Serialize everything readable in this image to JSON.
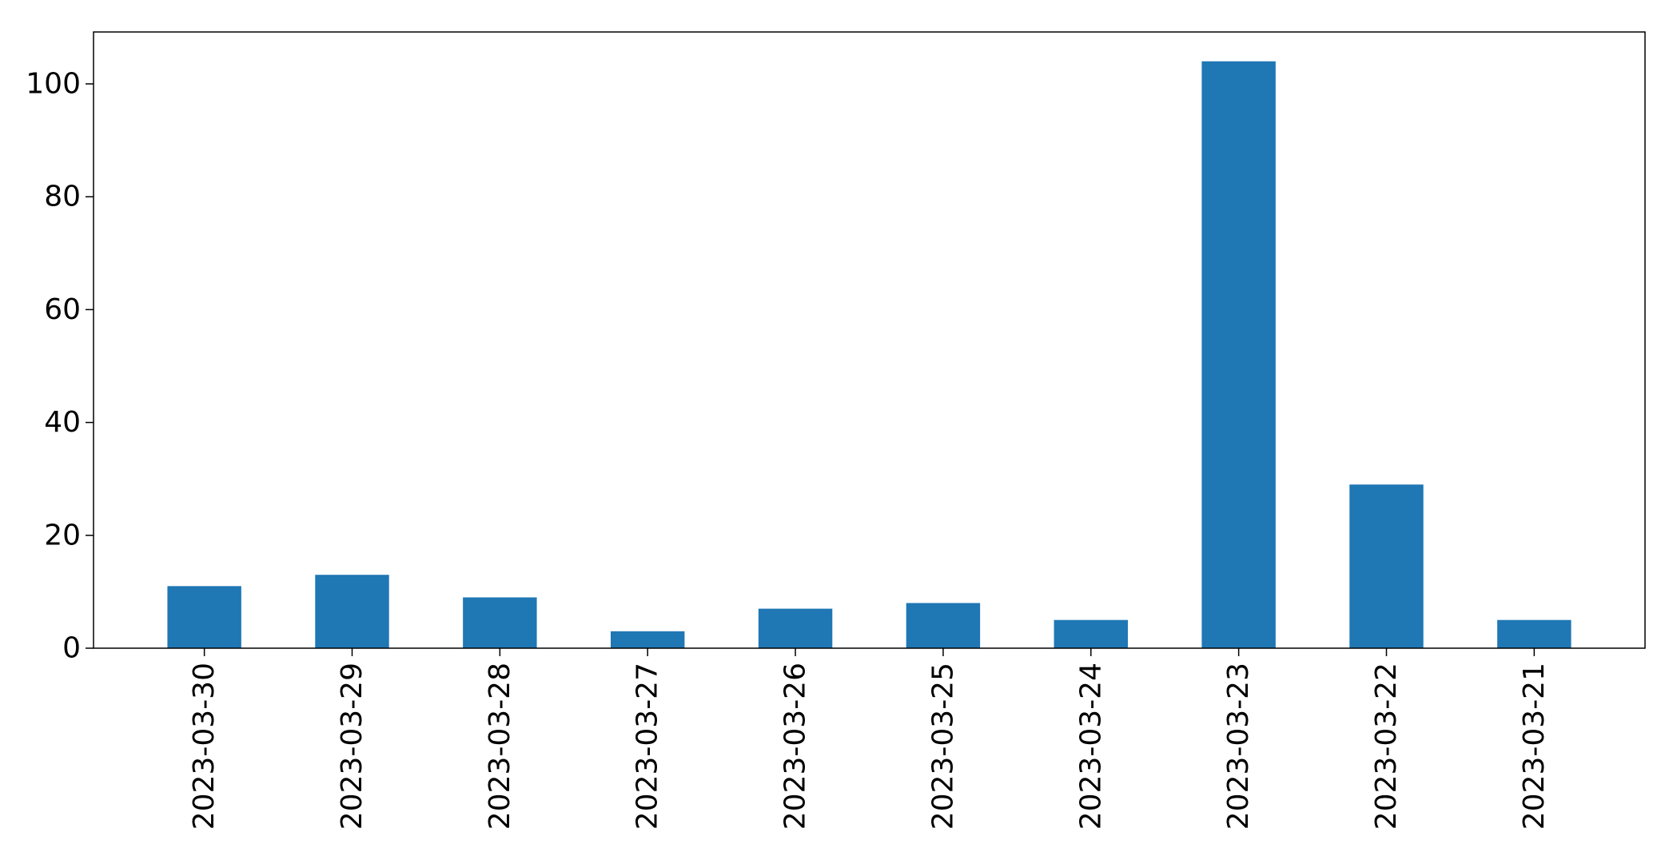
{
  "chart_data": {
    "type": "bar",
    "categories": [
      "2023-03-30",
      "2023-03-29",
      "2023-03-28",
      "2023-03-27",
      "2023-03-26",
      "2023-03-25",
      "2023-03-24",
      "2023-03-23",
      "2023-03-22",
      "2023-03-21"
    ],
    "values": [
      11,
      13,
      9,
      3,
      7,
      8,
      5,
      104,
      29,
      5
    ],
    "title": "",
    "xlabel": "",
    "ylabel": "",
    "ylim": [
      0,
      109.2
    ],
    "yticks": [
      0,
      20,
      40,
      60,
      80,
      100
    ],
    "bar_color": "#1f77b4",
    "grid": false,
    "legend": false
  }
}
